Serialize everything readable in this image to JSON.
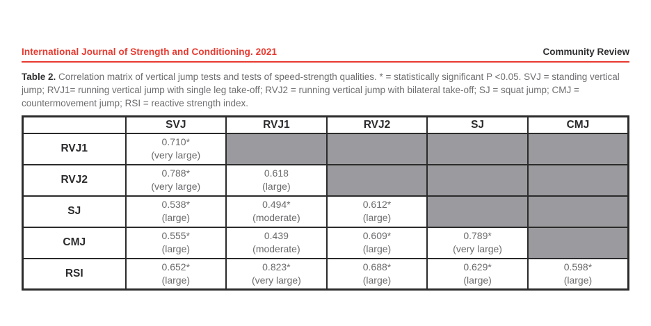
{
  "page": {
    "journal_title": "International Journal of Strength and Conditioning. 2021",
    "review_type": "Community Review",
    "accent_color": "#e8392f"
  },
  "caption": {
    "label": "Table 2.",
    "text": "Correlation matrix of vertical jump tests and tests of speed-strength qualities. * = statistically significant P <0.05. SVJ = standing vertical jump; RVJ1= running vertical jump with single leg take-off; RVJ2 = running vertical jump with bilateral take-off; SJ = squat jump; CMJ = countermovement jump; RSI = reactive strength index."
  },
  "table": {
    "empty_cell_color": "#9b9b9f",
    "border_color": "#2b2b2b",
    "column_headers": [
      "",
      "SVJ",
      "RVJ1",
      "RVJ2",
      "SJ",
      "CMJ"
    ],
    "rows": [
      {
        "header": "RVJ1",
        "cells": [
          {
            "value": "0.710*",
            "magnitude": "(very large)"
          },
          null,
          null,
          null,
          null
        ]
      },
      {
        "header": "RVJ2",
        "cells": [
          {
            "value": "0.788*",
            "magnitude": "(very large)"
          },
          {
            "value": "0.618",
            "magnitude": "(large)"
          },
          null,
          null,
          null
        ]
      },
      {
        "header": "SJ",
        "cells": [
          {
            "value": "0.538*",
            "magnitude": "(large)"
          },
          {
            "value": "0.494*",
            "magnitude": "(moderate)"
          },
          {
            "value": "0.612*",
            "magnitude": "(large)"
          },
          null,
          null
        ]
      },
      {
        "header": "CMJ",
        "cells": [
          {
            "value": "0.555*",
            "magnitude": "(large)"
          },
          {
            "value": "0.439",
            "magnitude": "(moderate)"
          },
          {
            "value": "0.609*",
            "magnitude": "(large)"
          },
          {
            "value": "0.789*",
            "magnitude": "(very large)"
          },
          null
        ]
      },
      {
        "header": "RSI",
        "cells": [
          {
            "value": "0.652*",
            "magnitude": "(large)"
          },
          {
            "value": "0.823*",
            "magnitude": "(very large)"
          },
          {
            "value": "0.688*",
            "magnitude": "(large)"
          },
          {
            "value": "0.629*",
            "magnitude": "(large)"
          },
          {
            "value": "0.598*",
            "magnitude": "(large)"
          }
        ]
      }
    ]
  }
}
